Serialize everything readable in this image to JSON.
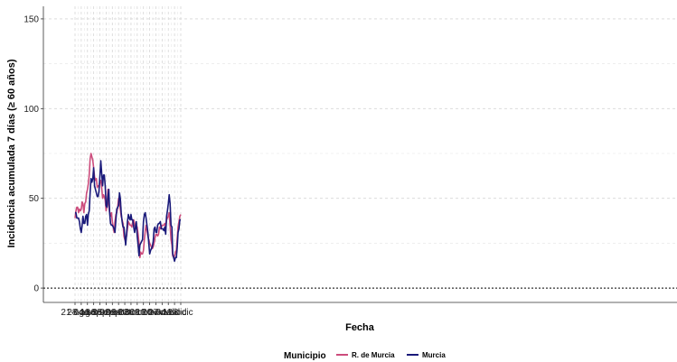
{
  "chart_data": {
    "type": "line",
    "xlabel": "Fecha",
    "ylabel": "Incidencia acumulada 7 días (≥ 60 años)",
    "ylim": [
      -8,
      157
    ],
    "yticks": [
      0,
      50,
      100,
      150
    ],
    "reference_line": 0,
    "xticks": [
      "21-ago",
      "28-ago",
      "04-sep",
      "11-sep",
      "18-sep",
      "25-sep",
      "02-oct",
      "09-oct",
      "16-oct",
      "23-oct",
      "30-oct",
      "06-nov",
      "13-nov",
      "20-nov",
      "27-nov",
      "04-dic",
      "11-dic",
      "18-dic"
    ],
    "grid": true,
    "legend": {
      "title": "Municipio",
      "position": "bottom"
    },
    "series": [
      {
        "name": "R. de Murcia",
        "color": "#cc4c7c",
        "points": [
          [
            0,
            39
          ],
          [
            1,
            43
          ],
          [
            2,
            45
          ],
          [
            3,
            45
          ],
          [
            4,
            42
          ],
          [
            5,
            44
          ],
          [
            6,
            43
          ],
          [
            7,
            44
          ],
          [
            8,
            48
          ],
          [
            9,
            47
          ],
          [
            10,
            42
          ],
          [
            11,
            47
          ],
          [
            12,
            48
          ],
          [
            13,
            53
          ],
          [
            14,
            55
          ],
          [
            15,
            58
          ],
          [
            16,
            63
          ],
          [
            17,
            72
          ],
          [
            18,
            75
          ],
          [
            19,
            73
          ],
          [
            20,
            71
          ],
          [
            21,
            67
          ],
          [
            22,
            62
          ],
          [
            23,
            60
          ],
          [
            24,
            61
          ],
          [
            25,
            56
          ],
          [
            26,
            57
          ],
          [
            27,
            57
          ],
          [
            28,
            59
          ],
          [
            29,
            60
          ],
          [
            30,
            56
          ],
          [
            31,
            50
          ],
          [
            32,
            52
          ],
          [
            33,
            51
          ],
          [
            34,
            49
          ],
          [
            35,
            43
          ],
          [
            36,
            46
          ],
          [
            37,
            55
          ],
          [
            38,
            46
          ],
          [
            39,
            42
          ],
          [
            40,
            40
          ],
          [
            41,
            42
          ],
          [
            42,
            37
          ],
          [
            43,
            34
          ],
          [
            44,
            31
          ],
          [
            45,
            37
          ],
          [
            46,
            41
          ],
          [
            47,
            42
          ],
          [
            48,
            45
          ],
          [
            49,
            50
          ],
          [
            50,
            48
          ],
          [
            51,
            44
          ],
          [
            52,
            40
          ],
          [
            53,
            38
          ],
          [
            54,
            36
          ],
          [
            55,
            29
          ],
          [
            56,
            27
          ],
          [
            57,
            26
          ],
          [
            58,
            29
          ],
          [
            59,
            33
          ],
          [
            60,
            37
          ],
          [
            61,
            36
          ],
          [
            62,
            35
          ],
          [
            63,
            35
          ],
          [
            64,
            34
          ],
          [
            65,
            37
          ],
          [
            66,
            38
          ],
          [
            67,
            36
          ],
          [
            68,
            33
          ],
          [
            69,
            35
          ],
          [
            70,
            34
          ],
          [
            71,
            30
          ],
          [
            72,
            25
          ],
          [
            73,
            17
          ],
          [
            74,
            20
          ],
          [
            75,
            19
          ],
          [
            76,
            19
          ],
          [
            77,
            21
          ],
          [
            78,
            27
          ],
          [
            79,
            32
          ],
          [
            80,
            35
          ],
          [
            81,
            32
          ],
          [
            82,
            29
          ],
          [
            83,
            27
          ],
          [
            84,
            25
          ],
          [
            85,
            24
          ],
          [
            86,
            23
          ],
          [
            87,
            22
          ],
          [
            88,
            23
          ],
          [
            89,
            25
          ],
          [
            90,
            28
          ],
          [
            91,
            30
          ],
          [
            92,
            30
          ],
          [
            93,
            29
          ],
          [
            94,
            30
          ],
          [
            95,
            34
          ],
          [
            96,
            33
          ],
          [
            97,
            33
          ],
          [
            98,
            35
          ],
          [
            99,
            35
          ],
          [
            100,
            35
          ],
          [
            101,
            36
          ],
          [
            102,
            34
          ],
          [
            103,
            38
          ],
          [
            104,
            39
          ],
          [
            105,
            40
          ],
          [
            106,
            42
          ],
          [
            107,
            35
          ],
          [
            108,
            27
          ],
          [
            109,
            24
          ],
          [
            110,
            18
          ],
          [
            111,
            17
          ],
          [
            112,
            18
          ],
          [
            113,
            20
          ],
          [
            114,
            21
          ],
          [
            115,
            28
          ],
          [
            116,
            34
          ],
          [
            117,
            37
          ],
          [
            118,
            40
          ],
          [
            119,
            41
          ]
        ]
      },
      {
        "name": "Murcia",
        "color": "#1a1a7a",
        "points": [
          [
            0,
            42
          ],
          [
            1,
            42
          ],
          [
            2,
            39
          ],
          [
            3,
            39
          ],
          [
            4,
            39
          ],
          [
            5,
            37
          ],
          [
            6,
            33
          ],
          [
            7,
            31
          ],
          [
            8,
            35
          ],
          [
            9,
            40
          ],
          [
            10,
            36
          ],
          [
            11,
            36
          ],
          [
            12,
            40
          ],
          [
            13,
            41
          ],
          [
            14,
            35
          ],
          [
            15,
            41
          ],
          [
            16,
            43
          ],
          [
            17,
            53
          ],
          [
            18,
            61
          ],
          [
            19,
            59
          ],
          [
            20,
            61
          ],
          [
            21,
            67
          ],
          [
            22,
            57
          ],
          [
            23,
            55
          ],
          [
            24,
            53
          ],
          [
            25,
            51
          ],
          [
            26,
            51
          ],
          [
            27,
            54
          ],
          [
            28,
            62
          ],
          [
            29,
            71
          ],
          [
            30,
            64
          ],
          [
            31,
            57
          ],
          [
            32,
            63
          ],
          [
            33,
            63
          ],
          [
            34,
            57
          ],
          [
            35,
            46
          ],
          [
            36,
            45
          ],
          [
            37,
            51
          ],
          [
            38,
            55
          ],
          [
            39,
            42
          ],
          [
            40,
            36
          ],
          [
            41,
            35
          ],
          [
            42,
            35
          ],
          [
            43,
            34
          ],
          [
            44,
            33
          ],
          [
            45,
            31
          ],
          [
            46,
            38
          ],
          [
            47,
            44
          ],
          [
            48,
            45
          ],
          [
            49,
            46
          ],
          [
            50,
            53
          ],
          [
            51,
            50
          ],
          [
            52,
            42
          ],
          [
            53,
            37
          ],
          [
            54,
            34
          ],
          [
            55,
            34
          ],
          [
            56,
            29
          ],
          [
            57,
            24
          ],
          [
            58,
            30
          ],
          [
            59,
            37
          ],
          [
            60,
            41
          ],
          [
            61,
            39
          ],
          [
            62,
            38
          ],
          [
            63,
            41
          ],
          [
            64,
            38
          ],
          [
            65,
            38
          ],
          [
            66,
            34
          ],
          [
            67,
            31
          ],
          [
            68,
            34
          ],
          [
            69,
            37
          ],
          [
            70,
            29
          ],
          [
            71,
            24
          ],
          [
            72,
            18
          ],
          [
            73,
            24
          ],
          [
            74,
            25
          ],
          [
            75,
            26
          ],
          [
            76,
            27
          ],
          [
            77,
            37
          ],
          [
            78,
            41
          ],
          [
            79,
            42
          ],
          [
            80,
            39
          ],
          [
            81,
            35
          ],
          [
            82,
            31
          ],
          [
            83,
            25
          ],
          [
            84,
            19
          ],
          [
            85,
            21
          ],
          [
            86,
            22
          ],
          [
            87,
            23
          ],
          [
            88,
            26
          ],
          [
            89,
            33
          ],
          [
            90,
            34
          ],
          [
            91,
            31
          ],
          [
            92,
            31
          ],
          [
            93,
            35
          ],
          [
            94,
            36
          ],
          [
            95,
            36
          ],
          [
            96,
            37
          ],
          [
            97,
            33
          ],
          [
            98,
            33
          ],
          [
            99,
            33
          ],
          [
            100,
            32
          ],
          [
            101,
            34
          ],
          [
            102,
            30
          ],
          [
            103,
            40
          ],
          [
            104,
            43
          ],
          [
            105,
            47
          ],
          [
            106,
            52
          ],
          [
            107,
            47
          ],
          [
            108,
            35
          ],
          [
            109,
            34
          ],
          [
            110,
            19
          ],
          [
            111,
            17
          ],
          [
            112,
            15
          ],
          [
            113,
            17
          ],
          [
            114,
            17
          ],
          [
            115,
            23
          ],
          [
            116,
            31
          ],
          [
            117,
            33
          ],
          [
            118,
            38
          ],
          [
            119,
            38
          ]
        ]
      }
    ]
  }
}
